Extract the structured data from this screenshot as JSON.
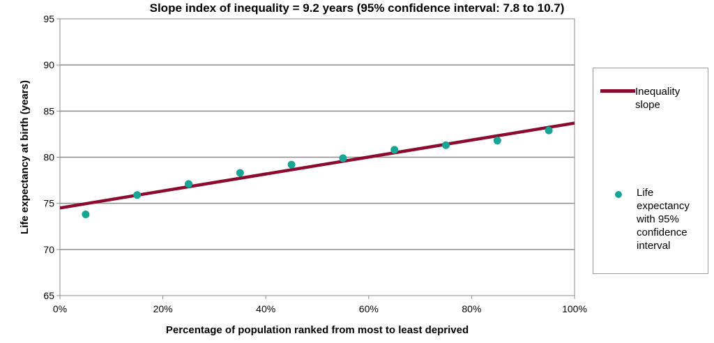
{
  "chart_data": {
    "type": "scatter",
    "title": "Slope index of inequality = 9.2 years (95% confidence interval: 7.8 to 10.7)",
    "xlabel": "Percentage of population ranked from most to least deprived",
    "ylabel": "Life expectancy at birth (years)",
    "xlim": [
      0,
      100
    ],
    "ylim": [
      65,
      95
    ],
    "x_ticks": [
      0,
      20,
      40,
      60,
      80,
      100
    ],
    "x_tick_labels": [
      "0%",
      "20%",
      "40%",
      "60%",
      "80%",
      "100%"
    ],
    "y_ticks": [
      65,
      70,
      75,
      80,
      85,
      90,
      95
    ],
    "y_tick_labels": [
      "65",
      "70",
      "75",
      "80",
      "85",
      "90",
      "95"
    ],
    "grid": "horizontal",
    "legend_position": "right",
    "series": [
      {
        "name": "Inequality slope",
        "kind": "line",
        "color": "#8b0a2e",
        "x": [
          0,
          100
        ],
        "y": [
          74.5,
          83.7
        ]
      },
      {
        "name": "Life expectancy with 95% confidence interval",
        "kind": "points",
        "color": "#17a595",
        "x": [
          5,
          15,
          25,
          35,
          45,
          55,
          65,
          75,
          85,
          95
        ],
        "y": [
          73.8,
          75.9,
          77.1,
          78.3,
          79.2,
          79.9,
          80.8,
          81.3,
          81.8,
          82.9
        ]
      }
    ]
  },
  "legend": {
    "line_label": "Inequality\nslope",
    "points_label": "Life\nexpectancy\nwith 95%\nconfidence\ninterval"
  }
}
